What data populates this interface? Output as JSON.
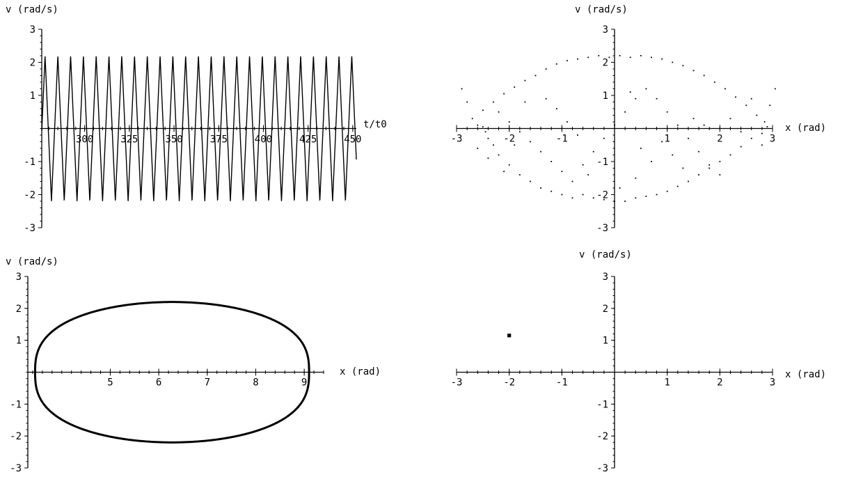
{
  "chart_data": [
    {
      "type": "line",
      "ylabel": "v (rad/s)",
      "xlabel": "t/t0",
      "xlim": [
        276,
        452
      ],
      "ylim": [
        -3,
        3
      ],
      "x_ticks": [
        300,
        325,
        350,
        375,
        400,
        425,
        450
      ],
      "y_ticks": [
        3,
        2,
        1,
        -1,
        -2,
        -3
      ],
      "series": [
        {
          "amplitude": 2.2,
          "period": 7.15,
          "phase": 1.0,
          "x_start": 276,
          "x_end": 452
        }
      ]
    },
    {
      "type": "scatter",
      "ylabel": "v (rad/s)",
      "xlabel": "x (rad)",
      "xlim": [
        -3,
        3
      ],
      "ylim": [
        -3,
        3
      ],
      "x_ticks": [
        -3,
        -2,
        -1,
        1,
        2,
        3
      ],
      "y_ticks": [
        3,
        2,
        1,
        -1,
        -2,
        -3
      ],
      "series": [
        {
          "points": [
            [
              -2.9,
              1.2
            ],
            [
              -2.8,
              0.8
            ],
            [
              -2.7,
              0.3
            ],
            [
              -2.6,
              0.1
            ],
            [
              -2.5,
              0.05
            ],
            [
              -2.45,
              -0.1
            ],
            [
              -2.4,
              -0.3
            ],
            [
              -2.3,
              -0.5
            ],
            [
              -2.2,
              -0.8
            ],
            [
              -2.0,
              -1.1
            ],
            [
              -1.8,
              -1.4
            ],
            [
              -1.6,
              -1.6
            ],
            [
              -1.4,
              -1.8
            ],
            [
              -1.2,
              -1.9
            ],
            [
              -1.0,
              -2.0
            ],
            [
              -0.8,
              -2.1
            ],
            [
              -0.6,
              -2.0
            ],
            [
              -0.4,
              -2.1
            ],
            [
              -0.2,
              -2.15
            ],
            [
              0.0,
              -2.2
            ],
            [
              0.2,
              -2.2
            ],
            [
              0.4,
              -2.1
            ],
            [
              0.6,
              -2.05
            ],
            [
              0.8,
              -2.0
            ],
            [
              1.0,
              -1.9
            ],
            [
              1.2,
              -1.75
            ],
            [
              1.4,
              -1.6
            ],
            [
              1.6,
              -1.4
            ],
            [
              1.8,
              -1.2
            ],
            [
              2.0,
              -1.0
            ],
            [
              2.2,
              -0.8
            ],
            [
              2.4,
              -0.55
            ],
            [
              2.6,
              -0.3
            ],
            [
              2.8,
              -0.15
            ],
            [
              2.9,
              0.05
            ],
            [
              2.85,
              0.2
            ],
            [
              2.7,
              0.4
            ],
            [
              2.5,
              0.7
            ],
            [
              2.3,
              0.95
            ],
            [
              2.1,
              1.2
            ],
            [
              1.9,
              1.4
            ],
            [
              1.7,
              1.6
            ],
            [
              1.5,
              1.75
            ],
            [
              1.3,
              1.9
            ],
            [
              1.1,
              2.0
            ],
            [
              0.9,
              2.1
            ],
            [
              0.7,
              2.15
            ],
            [
              0.5,
              2.2
            ],
            [
              0.3,
              2.15
            ],
            [
              0.1,
              2.2
            ],
            [
              -0.1,
              2.15
            ],
            [
              -0.3,
              2.2
            ],
            [
              -0.5,
              2.15
            ],
            [
              -0.7,
              2.1
            ],
            [
              -0.9,
              2.05
            ],
            [
              -1.1,
              1.95
            ],
            [
              -1.3,
              1.8
            ],
            [
              -1.5,
              1.6
            ],
            [
              -1.7,
              1.45
            ],
            [
              -1.9,
              1.25
            ],
            [
              -2.1,
              1.05
            ],
            [
              -2.3,
              0.8
            ],
            [
              -2.5,
              0.55
            ],
            [
              -2.2,
              0.5
            ],
            [
              -2.0,
              0.2
            ],
            [
              -1.8,
              -0.1
            ],
            [
              -1.6,
              -0.4
            ],
            [
              -1.4,
              -0.7
            ],
            [
              -1.2,
              -1.0
            ],
            [
              -1.0,
              -1.3
            ],
            [
              -0.8,
              -1.6
            ],
            [
              -0.6,
              -1.1
            ],
            [
              -0.4,
              -0.7
            ],
            [
              -0.2,
              -0.3
            ],
            [
              0.0,
              0.1
            ],
            [
              0.2,
              0.5
            ],
            [
              0.4,
              0.9
            ],
            [
              0.6,
              1.2
            ],
            [
              0.8,
              0.9
            ],
            [
              1.0,
              0.5
            ],
            [
              1.2,
              0.1
            ],
            [
              1.4,
              -0.3
            ],
            [
              1.6,
              -0.7
            ],
            [
              1.8,
              -1.1
            ],
            [
              2.0,
              -1.4
            ],
            [
              -1.3,
              0.9
            ],
            [
              -1.1,
              0.6
            ],
            [
              -0.9,
              0.2
            ],
            [
              -0.7,
              -0.2
            ],
            [
              0.9,
              -0.4
            ],
            [
              1.1,
              -0.8
            ],
            [
              1.3,
              -1.2
            ],
            [
              2.2,
              0.3
            ],
            [
              2.4,
              -0.1
            ],
            [
              -2.6,
              -0.6
            ],
            [
              -2.4,
              -0.9
            ],
            [
              -1.9,
              -0.5
            ],
            [
              -1.7,
              0.8
            ],
            [
              0.5,
              -0.6
            ],
            [
              0.7,
              -1.0
            ],
            [
              0.3,
              1.1
            ],
            [
              1.5,
              0.3
            ],
            [
              1.7,
              0.1
            ],
            [
              -0.5,
              -1.4
            ],
            [
              2.6,
              0.9
            ],
            [
              2.8,
              -0.5
            ],
            [
              -2.1,
              -1.3
            ],
            [
              0.1,
              -1.8
            ],
            [
              0.4,
              -1.5
            ],
            [
              3.05,
              1.2
            ],
            [
              2.95,
              0.7
            ]
          ]
        }
      ]
    },
    {
      "type": "line",
      "ylabel": "v (rad/s)",
      "xlabel": "x (rad)",
      "xlim": [
        3.3,
        9.4
      ],
      "ylim": [
        -3,
        3
      ],
      "x_ticks": [
        5,
        6,
        7,
        8,
        9
      ],
      "y_ticks": [
        3,
        2,
        1,
        -1,
        -2,
        -3
      ],
      "series": [
        {
          "shape": "closed-orbit",
          "x_min": 3.45,
          "x_max": 9.1,
          "v_max": 2.2
        }
      ]
    },
    {
      "type": "scatter",
      "ylabel": "v (rad/s)",
      "xlabel": "x (rad)",
      "xlim": [
        -3,
        3
      ],
      "ylim": [
        -3,
        3
      ],
      "x_ticks": [
        -3,
        -2,
        -1,
        1,
        2,
        3
      ],
      "y_ticks": [
        3,
        2,
        1,
        -1,
        -2,
        -3
      ],
      "series": [
        {
          "points": [
            [
              -2.0,
              1.15
            ]
          ]
        }
      ]
    }
  ]
}
